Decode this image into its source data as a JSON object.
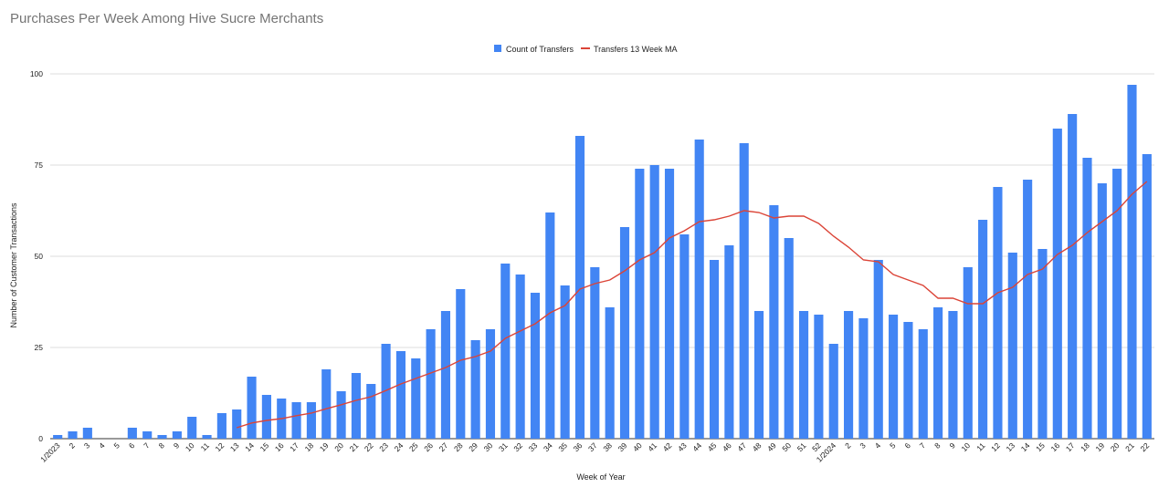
{
  "chart_data": {
    "type": "bar",
    "title": "Purchases Per Week Among Hive Sucre Merchants",
    "xlabel": "Week of Year",
    "ylabel": "Number of Customer Transactions",
    "ylim": [
      0,
      100
    ],
    "yticks": [
      0,
      25,
      50,
      75,
      100
    ],
    "grid": true,
    "legend_position": "top",
    "categories": [
      "1/2023",
      "2",
      "3",
      "4",
      "5",
      "6",
      "7",
      "8",
      "9",
      "10",
      "11",
      "12",
      "13",
      "14",
      "15",
      "16",
      "17",
      "18",
      "19",
      "20",
      "21",
      "22",
      "23",
      "24",
      "25",
      "26",
      "27",
      "28",
      "29",
      "30",
      "31",
      "32",
      "33",
      "34",
      "35",
      "36",
      "37",
      "38",
      "39",
      "40",
      "41",
      "42",
      "43",
      "44",
      "45",
      "46",
      "47",
      "48",
      "49",
      "50",
      "51",
      "52",
      "1/2024",
      "2",
      "3",
      "4",
      "5",
      "6",
      "7",
      "8",
      "9",
      "10",
      "11",
      "12",
      "13",
      "14",
      "15",
      "16",
      "17",
      "18",
      "19",
      "20",
      "21",
      "22"
    ],
    "series": [
      {
        "name": "Count of Transfers",
        "type": "bar",
        "color": "#4285f4",
        "values": [
          1,
          2,
          3,
          0,
          0,
          3,
          2,
          1,
          2,
          6,
          1,
          7,
          8,
          17,
          12,
          11,
          10,
          10,
          19,
          13,
          18,
          15,
          26,
          24,
          22,
          30,
          35,
          41,
          27,
          30,
          48,
          45,
          40,
          62,
          42,
          83,
          47,
          36,
          58,
          74,
          75,
          74,
          56,
          82,
          49,
          53,
          81,
          35,
          64,
          55,
          35,
          34,
          26,
          35,
          33,
          49,
          34,
          32,
          30,
          36,
          35,
          47,
          60,
          69,
          51,
          71,
          52,
          85,
          89,
          77,
          70,
          74,
          97,
          78
        ]
      },
      {
        "name": "Transfers 13 Week MA",
        "type": "line",
        "color": "#db4437",
        "values": [
          null,
          null,
          null,
          null,
          null,
          null,
          null,
          null,
          null,
          null,
          null,
          null,
          3,
          4.3,
          5,
          5.5,
          6.3,
          7,
          8.2,
          9.3,
          10.5,
          11.5,
          13.2,
          15,
          16.5,
          18,
          19.5,
          21.5,
          22.5,
          24,
          27.5,
          29.5,
          31.5,
          34.5,
          36.5,
          41,
          42.5,
          43.5,
          46,
          49,
          51,
          55,
          57,
          59.5,
          60,
          61,
          62.5,
          62,
          60.5,
          61,
          61,
          59,
          55.5,
          52.5,
          49,
          48.5,
          45,
          43.5,
          42,
          38.5,
          38.5,
          37,
          37,
          40,
          41.5,
          45,
          46.5,
          50.5,
          53,
          56.5,
          59.5,
          62.5,
          67,
          70.5
        ]
      }
    ]
  }
}
